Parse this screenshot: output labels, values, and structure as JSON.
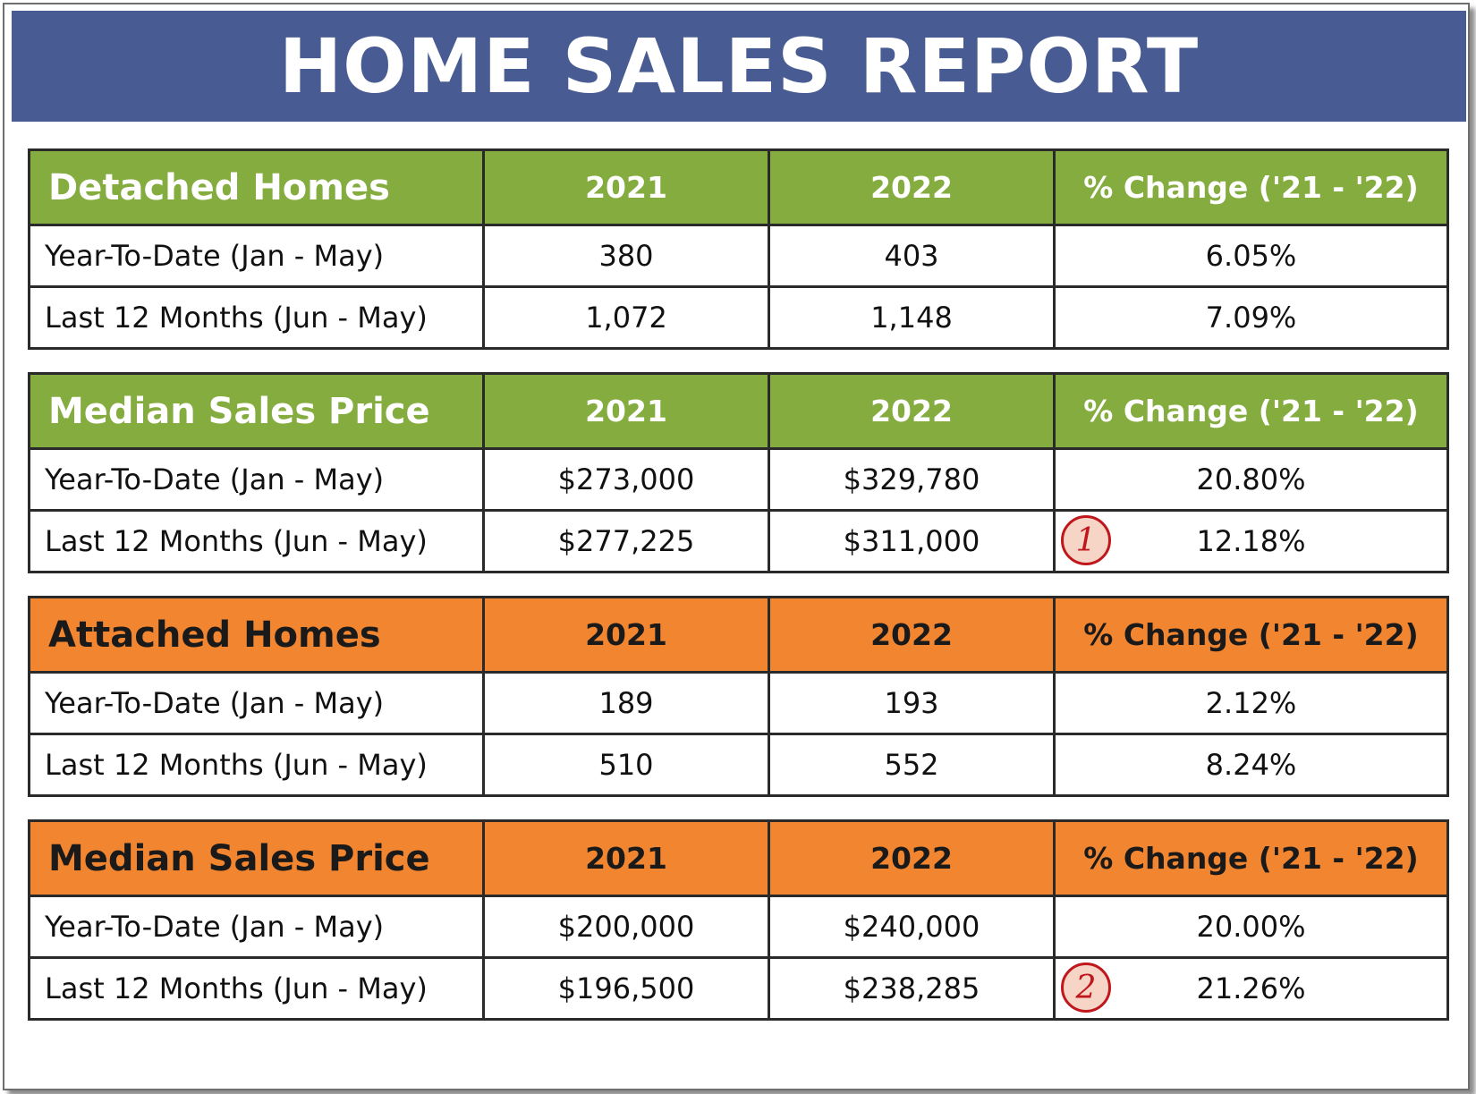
{
  "title": "HOME SALES REPORT",
  "colors": {
    "banner": "#485b92",
    "green_header": "#84ac3f",
    "orange_header": "#f28530",
    "mark": "#c0171c"
  },
  "tables": [
    {
      "header": {
        "label": "Detached Homes",
        "col1": "2021",
        "col2": "2022",
        "col3": "% Change ('21 - '22)"
      },
      "rows": [
        {
          "label": "Year-To-Date (Jan - May)",
          "v2021": "380",
          "v2022": "403",
          "change": "6.05%"
        },
        {
          "label": "Last 12 Months (Jun - May)",
          "v2021": "1,072",
          "v2022": "1,148",
          "change": "7.09%"
        }
      ]
    },
    {
      "header": {
        "label": "Median Sales Price",
        "col1": "2021",
        "col2": "2022",
        "col3": "% Change ('21 - '22)"
      },
      "rows": [
        {
          "label": "Year-To-Date (Jan - May)",
          "v2021": "$273,000",
          "v2022": "$329,780",
          "change": "20.80%"
        },
        {
          "label": "Last 12 Months (Jun - May)",
          "v2021": "$277,225",
          "v2022": "$311,000",
          "change": "12.18%",
          "mark": "1"
        }
      ]
    },
    {
      "header": {
        "label": "Attached Homes",
        "col1": "2021",
        "col2": "2022",
        "col3": "% Change ('21 - '22)"
      },
      "rows": [
        {
          "label": "Year-To-Date (Jan - May)",
          "v2021": "189",
          "v2022": "193",
          "change": "2.12%"
        },
        {
          "label": "Last 12 Months (Jun - May)",
          "v2021": "510",
          "v2022": "552",
          "change": "8.24%"
        }
      ]
    },
    {
      "header": {
        "label": "Median Sales Price",
        "col1": "2021",
        "col2": "2022",
        "col3": "% Change ('21 - '22)"
      },
      "rows": [
        {
          "label": "Year-To-Date (Jan - May)",
          "v2021": "$200,000",
          "v2022": "$240,000",
          "change": "20.00%"
        },
        {
          "label": "Last 12 Months (Jun - May)",
          "v2021": "$196,500",
          "v2022": "$238,285",
          "change": "21.26%",
          "mark": "2"
        }
      ]
    }
  ]
}
